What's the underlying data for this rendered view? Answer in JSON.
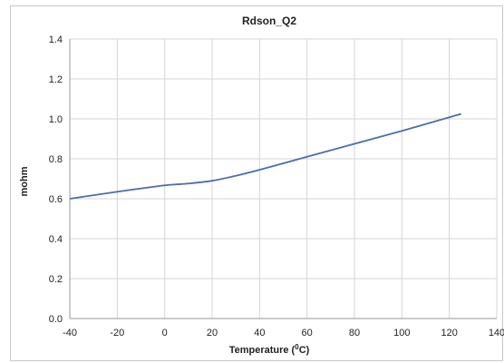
{
  "chart_data": {
    "type": "line",
    "title": "Rdson_Q2",
    "xlabel_main": "Temperature (",
    "xlabel_sup": "0",
    "xlabel_end": "C)",
    "ylabel": "mohm",
    "xlim": [
      -40,
      140
    ],
    "ylim": [
      0,
      1.4
    ],
    "xticks": [
      "-40",
      "-20",
      "0",
      "20",
      "40",
      "60",
      "80",
      "100",
      "120",
      "140"
    ],
    "yticks": [
      "0.0",
      "0.2",
      "0.4",
      "0.6",
      "0.8",
      "1.0",
      "1.2",
      "1.4"
    ],
    "grid": true,
    "series": [
      {
        "x": [
          -40,
          -20,
          0,
          10,
          20,
          30,
          40,
          60,
          80,
          100,
          125
        ],
        "y": [
          0.6,
          0.635,
          0.667,
          0.676,
          0.69,
          0.715,
          0.745,
          0.81,
          0.875,
          0.94,
          1.025
        ],
        "color": "#4a6fa5"
      }
    ]
  }
}
